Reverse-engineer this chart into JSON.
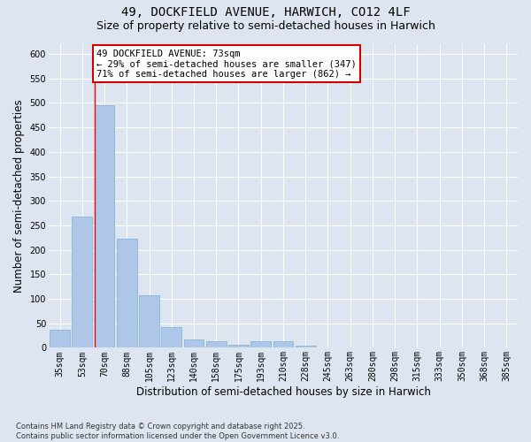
{
  "title_line1": "49, DOCKFIELD AVENUE, HARWICH, CO12 4LF",
  "title_line2": "Size of property relative to semi-detached houses in Harwich",
  "xlabel": "Distribution of semi-detached houses by size in Harwich",
  "ylabel": "Number of semi-detached properties",
  "footnote": "Contains HM Land Registry data © Crown copyright and database right 2025.\nContains public sector information licensed under the Open Government Licence v3.0.",
  "bar_labels": [
    "35sqm",
    "53sqm",
    "70sqm",
    "88sqm",
    "105sqm",
    "123sqm",
    "140sqm",
    "158sqm",
    "175sqm",
    "193sqm",
    "210sqm",
    "228sqm",
    "245sqm",
    "263sqm",
    "280sqm",
    "298sqm",
    "315sqm",
    "333sqm",
    "350sqm",
    "368sqm",
    "385sqm"
  ],
  "bar_values": [
    36,
    268,
    495,
    222,
    108,
    42,
    17,
    14,
    6,
    14,
    14,
    4,
    0,
    0,
    0,
    0,
    0,
    0,
    0,
    1,
    0
  ],
  "bar_color": "#aec6e8",
  "bar_edgecolor": "#7bafd4",
  "red_line_x": 2,
  "annotation_text": "49 DOCKFIELD AVENUE: 73sqm\n← 29% of semi-detached houses are smaller (347)\n71% of semi-detached houses are larger (862) →",
  "annotation_box_facecolor": "#ffffff",
  "annotation_box_edgecolor": "#cc0000",
  "ylim": [
    0,
    620
  ],
  "yticks": [
    0,
    50,
    100,
    150,
    200,
    250,
    300,
    350,
    400,
    450,
    500,
    550,
    600
  ],
  "background_color": "#dde6f0",
  "plot_background": "#dde6f0",
  "grid_color": "#ffffff",
  "title_fontsize": 10,
  "subtitle_fontsize": 9,
  "axis_label_fontsize": 8.5,
  "tick_fontsize": 7,
  "annotation_fontsize": 7.5,
  "footnote_fontsize": 6
}
